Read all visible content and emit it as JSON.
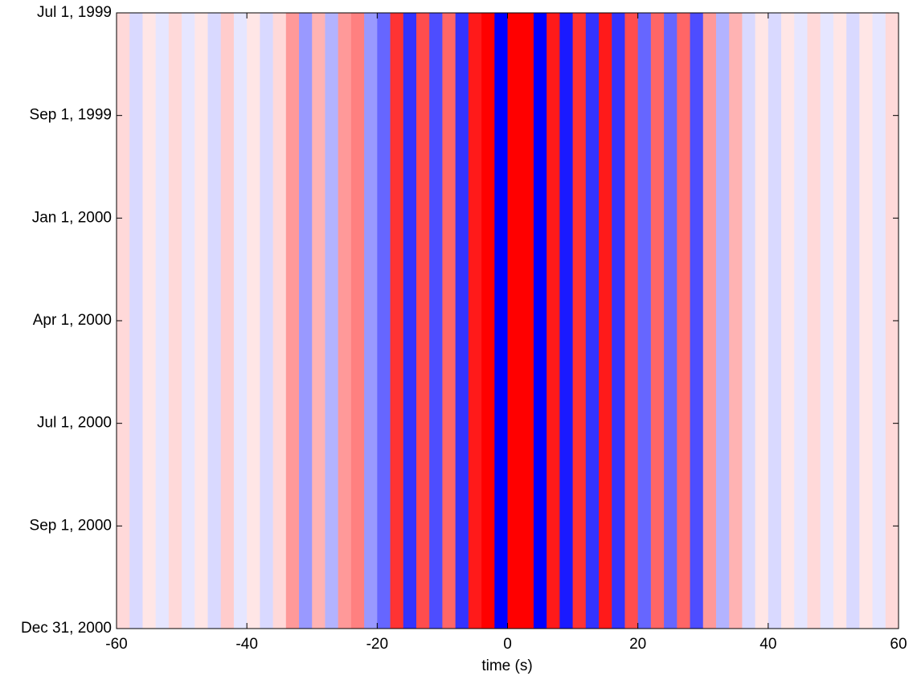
{
  "chart_data": {
    "type": "heatmap",
    "x_label": "time (s)",
    "x": [
      -59,
      -57,
      -55,
      -53,
      -51,
      -49,
      -47,
      -45,
      -43,
      -41,
      -39,
      -37,
      -35,
      -33,
      -31,
      -29,
      -27,
      -25,
      -23,
      -21,
      -19,
      -17,
      -15,
      -13,
      -11,
      -9,
      -7,
      -5,
      -3,
      -1,
      1,
      3,
      5,
      7,
      9,
      11,
      13,
      15,
      17,
      19,
      21,
      23,
      25,
      27,
      29,
      31,
      33,
      35,
      37,
      39,
      41,
      43,
      45,
      47,
      49,
      51,
      53,
      55,
      57,
      59
    ],
    "values": [
      0.15,
      -0.15,
      0.1,
      -0.1,
      0.15,
      -0.1,
      0.1,
      -0.15,
      0.2,
      -0.1,
      0.1,
      -0.15,
      0.15,
      0.4,
      -0.4,
      0.3,
      -0.3,
      0.4,
      0.5,
      -0.4,
      -0.6,
      0.8,
      -0.8,
      0.7,
      -0.7,
      0.6,
      -0.8,
      0.9,
      1.0,
      -1.0,
      1.0,
      1.0,
      -1.0,
      0.9,
      -0.9,
      0.8,
      -0.8,
      0.9,
      -0.8,
      0.7,
      -0.6,
      0.6,
      -0.6,
      0.6,
      -0.7,
      0.4,
      -0.3,
      0.3,
      -0.15,
      0.1,
      -0.15,
      0.1,
      -0.1,
      0.15,
      -0.1,
      0.1,
      -0.15,
      0.1,
      -0.1,
      0.15
    ],
    "positive_color": "#ff0000",
    "negative_color": "#0000ff",
    "xlim": [
      -60,
      60
    ],
    "xticks": [
      -60,
      -40,
      -20,
      0,
      20,
      40,
      60
    ],
    "y_tick_labels": [
      "Jul 1, 1999",
      "Sep 1, 1999",
      "Jan 1, 2000",
      "Apr 1, 2000",
      "Jul 1, 2000",
      "Sep 1, 2000",
      "Dec 31, 2000"
    ]
  }
}
